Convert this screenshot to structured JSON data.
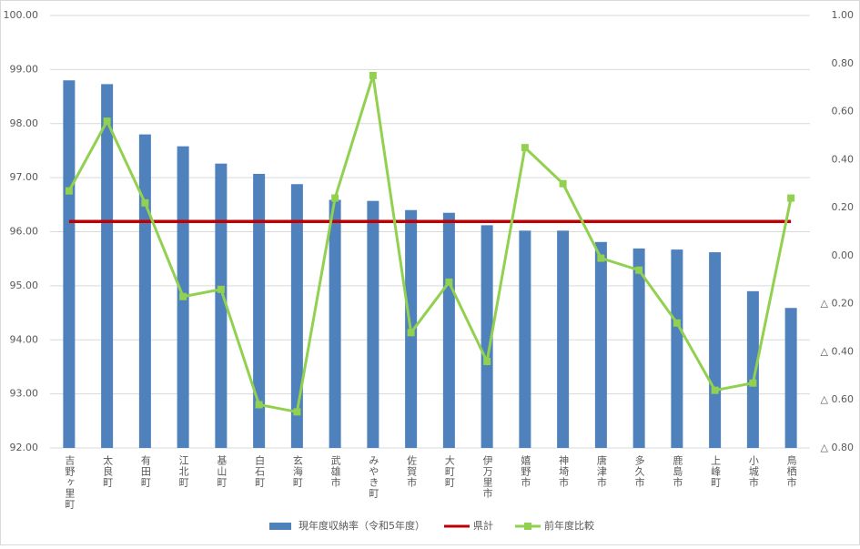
{
  "chart_data": {
    "type": "bar",
    "categories": [
      "吉野ヶ里町",
      "太良町",
      "有田町",
      "江北町",
      "基山町",
      "白石町",
      "玄海町",
      "武雄市",
      "みやき町",
      "佐賀市",
      "大町町",
      "伊万里市",
      "嬉野市",
      "神埼市",
      "唐津市",
      "多久市",
      "鹿島市",
      "上峰町",
      "小城市",
      "鳥栖市"
    ],
    "series": [
      {
        "name": "現年度収納率（令和5年度）",
        "type": "bar",
        "color": "#4f81bd",
        "values": [
          98.8,
          98.73,
          97.8,
          97.58,
          97.26,
          97.07,
          96.88,
          96.59,
          96.57,
          96.4,
          96.35,
          96.12,
          96.02,
          96.02,
          95.81,
          95.69,
          95.67,
          95.62,
          94.9,
          94.59
        ]
      },
      {
        "name": "県計",
        "type": "line",
        "color": "#c00000",
        "values": [
          96.19,
          96.19,
          96.19,
          96.19,
          96.19,
          96.19,
          96.19,
          96.19,
          96.19,
          96.19,
          96.19,
          96.19,
          96.19,
          96.19,
          96.19,
          96.19,
          96.19,
          96.19,
          96.19,
          96.19
        ]
      },
      {
        "name": "前年度比較",
        "type": "line",
        "axis": "y2",
        "color": "#92d050",
        "values": [
          0.27,
          0.56,
          0.22,
          -0.17,
          -0.14,
          -0.62,
          -0.65,
          0.24,
          0.75,
          -0.32,
          -0.11,
          -0.44,
          0.45,
          0.3,
          -0.01,
          -0.06,
          -0.28,
          -0.56,
          -0.53,
          0.24
        ]
      }
    ],
    "ylim": [
      92,
      100
    ],
    "yticks": [
      {
        "value": 92,
        "label": "92.00"
      },
      {
        "value": 93,
        "label": "93.00"
      },
      {
        "value": 94,
        "label": "94.00"
      },
      {
        "value": 95,
        "label": "95.00"
      },
      {
        "value": 96,
        "label": "96.00"
      },
      {
        "value": 97,
        "label": "97.00"
      },
      {
        "value": 98,
        "label": "98.00"
      },
      {
        "value": 99,
        "label": "99.00"
      },
      {
        "value": 100,
        "label": "100.00"
      }
    ],
    "y2lim": [
      -0.8,
      1
    ],
    "y2ticks": [
      {
        "value": -0.8,
        "label": "△ 0.80"
      },
      {
        "value": -0.6,
        "label": "△ 0.60"
      },
      {
        "value": -0.4,
        "label": "△ 0.40"
      },
      {
        "value": -0.2,
        "label": "△ 0.20"
      },
      {
        "value": 0,
        "label": "0.00"
      },
      {
        "value": 0.2,
        "label": "0.20"
      },
      {
        "value": 0.4,
        "label": "0.40"
      },
      {
        "value": 0.6,
        "label": "0.60"
      },
      {
        "value": 0.8,
        "label": "0.80"
      },
      {
        "value": 1,
        "label": "1.00"
      }
    ],
    "grid": true,
    "legend": "bottom"
  }
}
